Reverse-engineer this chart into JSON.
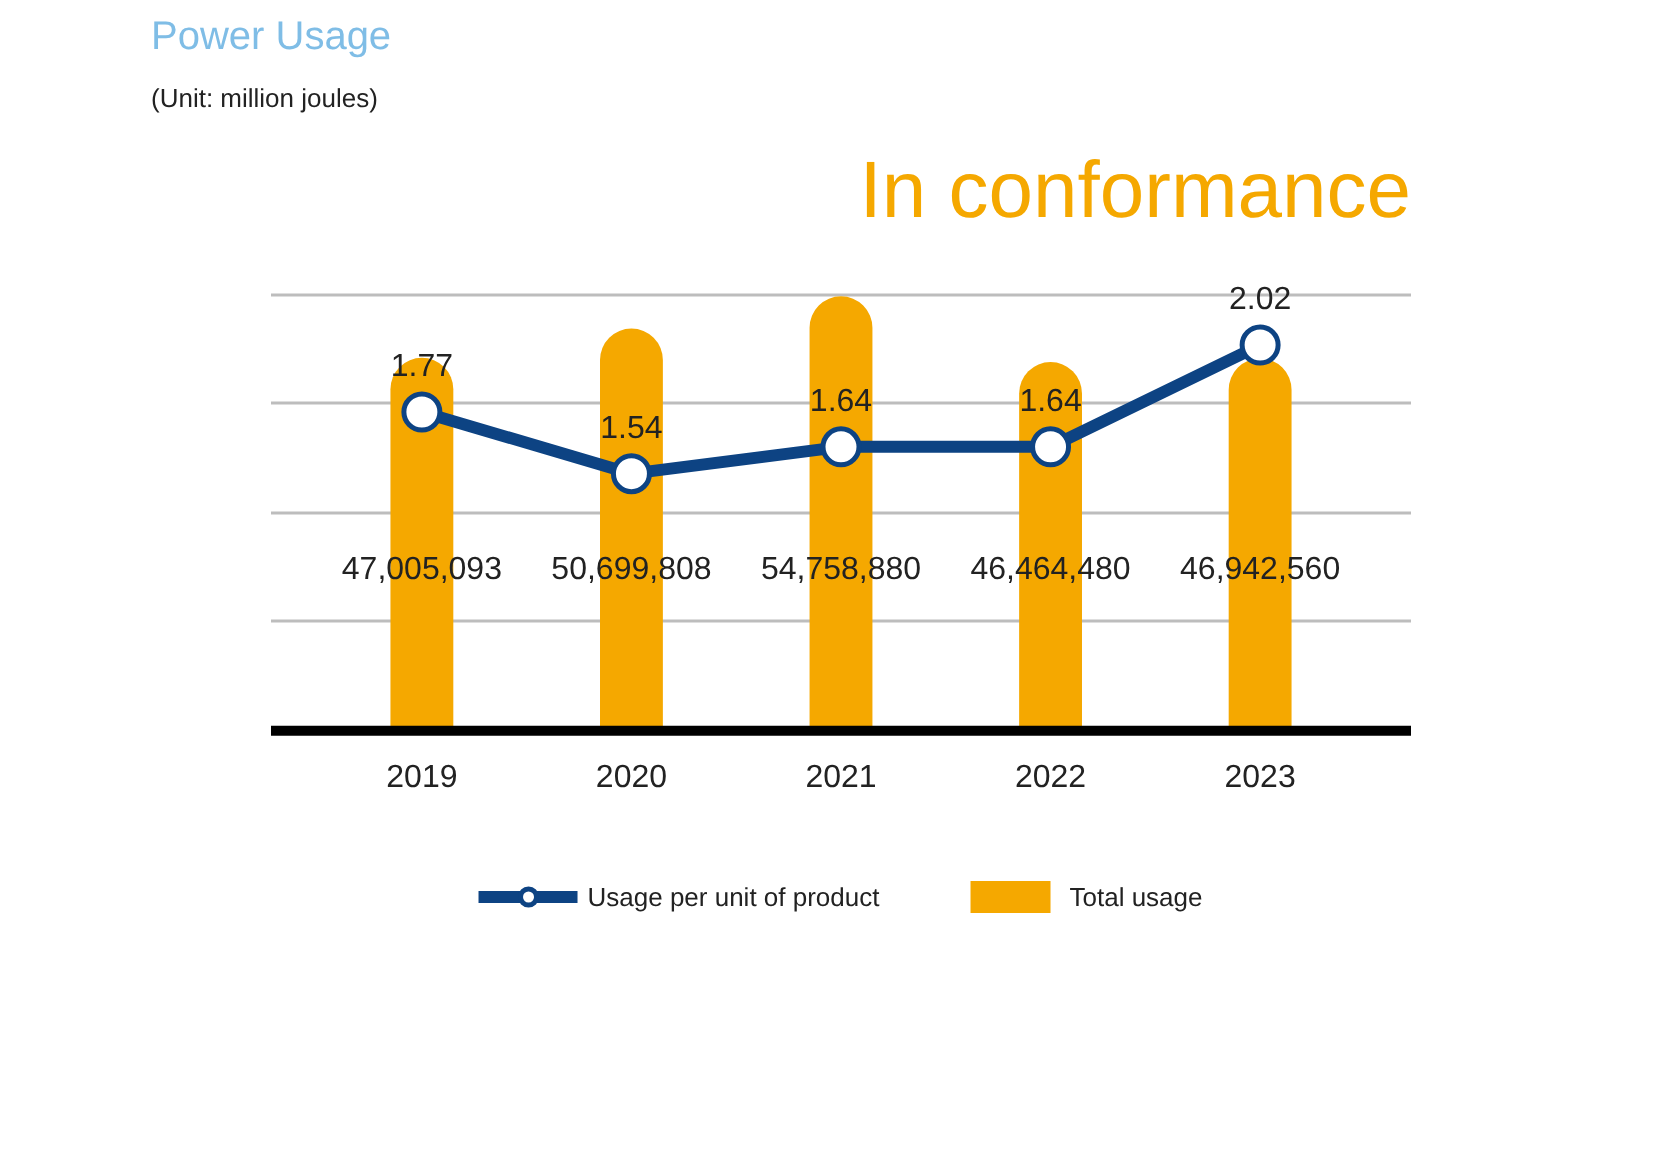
{
  "chart_data": {
    "type": "bar",
    "title": "Power Usage",
    "subtitle": "(Unit: million joules)",
    "annotations": [
      "In conformance"
    ],
    "categories": [
      "2019",
      "2020",
      "2021",
      "2022",
      "2023"
    ],
    "series": [
      {
        "name": "Total usage",
        "color": "#f5a800",
        "values": [
          47005093,
          50699808,
          54758880,
          46464480,
          46942560
        ],
        "value_labels": [
          "47,005,093",
          "50,699,808",
          "54,758,880",
          "46,464,480",
          "46,942,560"
        ]
      },
      {
        "name": "Usage per unit of product",
        "type": "line",
        "axis": "y2",
        "color": "#0d4383",
        "marker": "circle",
        "values": [
          1.77,
          1.54,
          1.64,
          1.64,
          2.02
        ],
        "value_labels": [
          "1.77",
          "1.54",
          "1.64",
          "1.64",
          "2.02"
        ]
      }
    ],
    "grid": "y",
    "tick_labels": "x",
    "legend": "bottom"
  }
}
